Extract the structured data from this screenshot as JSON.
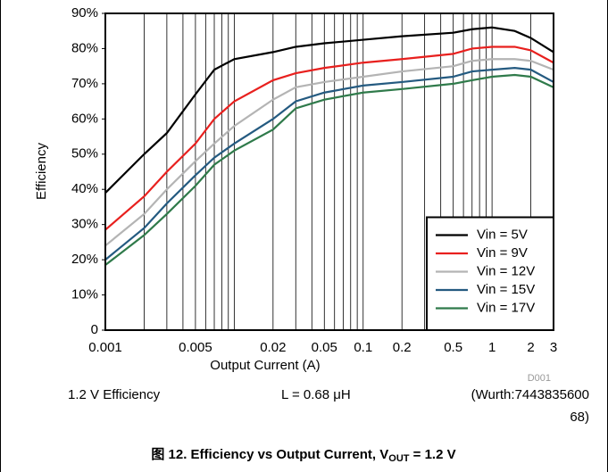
{
  "chart_data": {
    "type": "line",
    "x_label": "Output Current (A)",
    "y_label": "Efficiency",
    "log_x": true,
    "grid": "vertical",
    "legend": "lower right",
    "xlim": [
      0.001,
      3
    ],
    "ylim": [
      0,
      90
    ],
    "xticks": [
      0.001,
      0.005,
      0.02,
      0.05,
      0.1,
      0.2,
      0.5,
      1,
      2,
      3
    ],
    "xgrid": [
      0.001,
      0.002,
      0.003,
      0.004,
      0.005,
      0.006,
      0.007,
      0.008,
      0.009,
      0.01,
      0.02,
      0.03,
      0.04,
      0.05,
      0.06,
      0.07,
      0.08,
      0.09,
      0.1,
      0.2,
      0.3,
      0.4,
      0.5,
      0.6,
      0.7,
      0.8,
      0.9,
      1,
      2,
      3
    ],
    "yticks": [
      {
        "value": 0,
        "label": "0"
      },
      {
        "value": 10,
        "label": "10%"
      },
      {
        "value": 20,
        "label": "20%"
      },
      {
        "value": 30,
        "label": "30%"
      },
      {
        "value": 40,
        "label": "40%"
      },
      {
        "value": 50,
        "label": "50%"
      },
      {
        "value": 60,
        "label": "60%"
      },
      {
        "value": 70,
        "label": "70%"
      },
      {
        "value": 80,
        "label": "80%"
      },
      {
        "value": 90,
        "label": "90%"
      }
    ],
    "x": [
      0.001,
      0.002,
      0.003,
      0.005,
      0.007,
      0.01,
      0.02,
      0.03,
      0.05,
      0.1,
      0.2,
      0.5,
      0.7,
      1,
      1.5,
      2,
      3
    ],
    "series": [
      {
        "name": "Vin = 5V",
        "color": "#000000",
        "values": [
          39,
          50,
          56,
          67,
          74,
          77,
          79,
          80.5,
          81.5,
          82.5,
          83.5,
          84.5,
          85.5,
          86,
          85,
          83,
          79
        ]
      },
      {
        "name": "Vin = 9V",
        "color": "#e8201e",
        "values": [
          28.5,
          38,
          45,
          53,
          60,
          65,
          71,
          73,
          74.5,
          76,
          77,
          78.5,
          80,
          80.5,
          80.5,
          79.5,
          76
        ]
      },
      {
        "name": "Vin = 12V",
        "color": "#b4b4b4",
        "values": [
          24,
          33,
          40,
          48,
          53,
          58,
          65.5,
          69,
          70.5,
          72,
          73.5,
          75,
          76.5,
          77,
          77,
          76.5,
          74
        ]
      },
      {
        "name": "Vin = 15V",
        "color": "#245a80",
        "values": [
          20,
          29,
          36,
          44,
          49,
          53,
          60,
          65,
          67.5,
          69.5,
          70.5,
          72,
          73.5,
          74,
          74.5,
          74,
          70.5
        ]
      },
      {
        "name": "Vin = 17V",
        "color": "#2f7a4a",
        "values": [
          18.5,
          27,
          33,
          41,
          47,
          51,
          57,
          63,
          65.5,
          67.5,
          68.5,
          70,
          71,
          72,
          72.5,
          72,
          69
        ]
      }
    ],
    "code": "D001",
    "notes": [
      "1.2 V Efficiency",
      "L = 0.68 μH",
      "(Wurth:7443835600",
      "68)"
    ],
    "caption": {
      "prefix": "图 12. Efficiency vs Output Current, V",
      "sub": "OUT",
      "suffix": " = 1.2 V"
    }
  }
}
